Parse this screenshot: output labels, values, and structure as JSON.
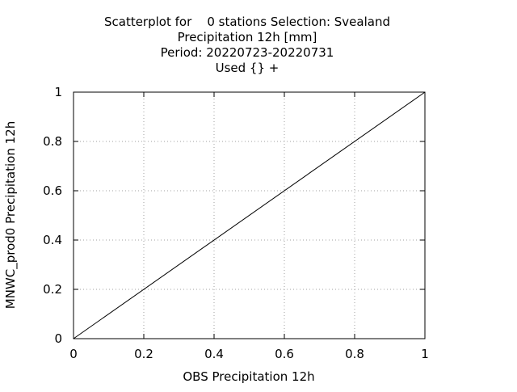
{
  "chart_data": {
    "type": "scatter",
    "title_lines": [
      "Scatterplot for    0 stations Selection: Svealand",
      "Precipitation 12h [mm]",
      "Period: 20220723-20220731",
      "Used {} +"
    ],
    "xlabel": "OBS Precipitation 12h",
    "ylabel": "MNWC_prod0 Precipitation 12h",
    "xlim": [
      0,
      1
    ],
    "ylim": [
      0,
      1
    ],
    "x_ticks": [
      "0",
      "0.2",
      "0.4",
      "0.6",
      "0.8",
      "1"
    ],
    "y_ticks": [
      "0",
      "0.2",
      "0.4",
      "0.6",
      "0.8",
      "1"
    ],
    "grid": true,
    "series": [
      {
        "type": "line",
        "x": [
          0,
          1
        ],
        "y": [
          0,
          1
        ],
        "color": "#000000"
      }
    ]
  }
}
